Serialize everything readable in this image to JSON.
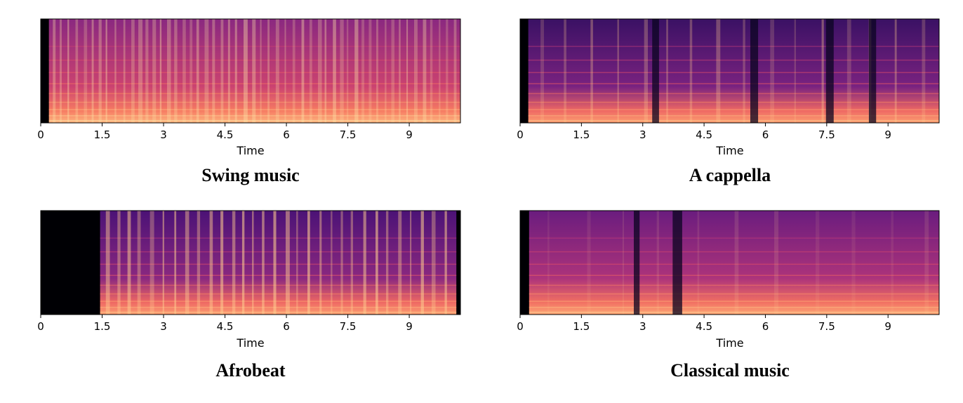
{
  "chart_data": [
    {
      "type": "heatmap",
      "title": "Swing music",
      "xlabel": "Time",
      "xticks": [
        "0",
        "1.5",
        "3",
        "4.5",
        "6",
        "7.5",
        "9"
      ],
      "xtick_values": [
        0,
        1.5,
        3,
        4.5,
        6,
        7.5,
        9
      ],
      "xlim": [
        0,
        10.25
      ],
      "audio_onset": 0.2,
      "audio_end": 10.25,
      "colormap": "magma",
      "description_values": {
        "background_intensity": 0.48,
        "low_band_intensity": 0.85,
        "pulse_period": 0.19,
        "pulse_strength": 0.35
      }
    },
    {
      "type": "heatmap",
      "title": "A cappella",
      "xlabel": "Time",
      "xticks": [
        "0",
        "1.5",
        "3",
        "4.5",
        "6",
        "7.5",
        "9"
      ],
      "xtick_values": [
        0,
        1.5,
        3,
        4.5,
        6,
        7.5,
        9
      ],
      "xlim": [
        0,
        10.25
      ],
      "audio_onset": 0.2,
      "audio_end": 10.25,
      "colormap": "magma",
      "description_values": {
        "background_intensity": 0.28,
        "low_band_intensity": 0.8,
        "pulse_period": 0.6,
        "pulse_strength": 0.3
      },
      "dark_gaps": [
        3.3,
        5.7,
        7.55,
        8.6
      ]
    },
    {
      "type": "heatmap",
      "title": "Afrobeat",
      "xlabel": "Time",
      "xticks": [
        "0",
        "1.5",
        "3",
        "4.5",
        "6",
        "7.5",
        "9"
      ],
      "xtick_values": [
        0,
        1.5,
        3,
        4.5,
        6,
        7.5,
        9
      ],
      "xlim": [
        0,
        10.25
      ],
      "audio_onset": 1.45,
      "audio_end": 10.15,
      "colormap": "magma",
      "description_values": {
        "background_intensity": 0.32,
        "low_band_intensity": 0.8,
        "pulse_period": 0.28,
        "pulse_strength": 0.5
      }
    },
    {
      "type": "heatmap",
      "title": "Classical music",
      "xlabel": "Time",
      "xticks": [
        "0",
        "1.5",
        "3",
        "4.5",
        "6",
        "7.5",
        "9"
      ],
      "xtick_values": [
        0,
        1.5,
        3,
        4.5,
        6,
        7.5,
        9
      ],
      "xlim": [
        0,
        10.25
      ],
      "audio_onset": 0.22,
      "audio_end": 10.25,
      "colormap": "magma",
      "description_values": {
        "background_intensity": 0.4,
        "low_band_intensity": 0.82,
        "pulse_period": 0.9,
        "pulse_strength": 0.12
      },
      "dark_gaps": [
        3.8,
        2.85
      ]
    }
  ]
}
